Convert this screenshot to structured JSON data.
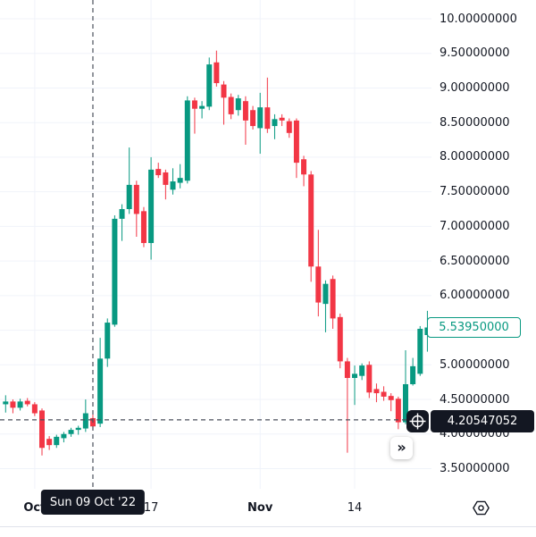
{
  "chart_data": {
    "type": "candlestick",
    "title": "",
    "colors": {
      "up": "#089981",
      "down": "#f23645",
      "grid": "#f0f3fa",
      "text": "#131722",
      "crosshair": "#4a4f5a",
      "axis_separator": "#e0e3eb",
      "background": "#ffffff"
    },
    "price_axis": {
      "max": 10.0,
      "min": 3.5,
      "tick_values": [
        10.0,
        9.5,
        9.0,
        8.5,
        8.0,
        7.5,
        7.0,
        6.5,
        6.0,
        5.5,
        5.0,
        4.5,
        4.0,
        3.5
      ],
      "tick_labels": [
        "10.00000000",
        "9.50000000",
        "9.00000000",
        "8.50000000",
        "8.00000000",
        "7.50000000",
        "7.00000000",
        "6.50000000",
        "6.00000000",
        "5.50000000",
        "5.00000000",
        "4.50000000",
        "4.00000000",
        "3.50000000"
      ]
    },
    "time_axis": {
      "ticks": [
        {
          "label": "Oct",
          "index": 4,
          "bold": true
        },
        {
          "label": "17",
          "index": 20,
          "bold": false
        },
        {
          "label": "Nov",
          "index": 35,
          "bold": true
        },
        {
          "label": "14",
          "index": 48,
          "bold": false
        }
      ]
    },
    "last_price": {
      "value": 5.5395,
      "label": "5.53950000"
    },
    "ohlc_order": [
      "open",
      "high",
      "low",
      "close"
    ],
    "candles": [
      [
        4.43,
        4.56,
        4.31,
        4.47
      ],
      [
        4.47,
        4.5,
        4.3,
        4.38
      ],
      [
        4.38,
        4.51,
        4.34,
        4.47
      ],
      [
        4.48,
        4.52,
        4.4,
        4.43
      ],
      [
        4.43,
        4.46,
        4.26,
        4.3
      ],
      [
        4.34,
        4.37,
        3.69,
        3.8
      ],
      [
        3.93,
        3.97,
        3.77,
        3.84
      ],
      [
        3.84,
        3.99,
        3.8,
        3.96
      ],
      [
        3.94,
        4.03,
        3.88,
        4.0
      ],
      [
        4.0,
        4.09,
        3.96,
        4.06
      ],
      [
        4.06,
        4.12,
        3.99,
        4.09
      ],
      [
        4.08,
        4.5,
        4.03,
        4.3
      ],
      [
        4.23,
        4.28,
        4.05,
        4.11
      ],
      [
        4.15,
        5.39,
        4.1,
        5.09
      ],
      [
        5.09,
        5.67,
        4.97,
        5.61
      ],
      [
        5.58,
        7.16,
        5.55,
        7.11
      ],
      [
        7.11,
        7.32,
        6.79,
        7.25
      ],
      [
        7.25,
        8.14,
        7.18,
        7.6
      ],
      [
        7.6,
        7.66,
        6.85,
        7.18
      ],
      [
        7.22,
        7.28,
        6.7,
        6.76
      ],
      [
        6.76,
        8.0,
        6.52,
        7.82
      ],
      [
        7.83,
        7.92,
        7.7,
        7.74
      ],
      [
        7.78,
        7.82,
        7.39,
        7.6
      ],
      [
        7.53,
        7.84,
        7.46,
        7.65
      ],
      [
        7.63,
        7.9,
        7.55,
        7.7
      ],
      [
        7.66,
        8.88,
        7.62,
        8.82
      ],
      [
        8.82,
        8.86,
        8.34,
        8.7
      ],
      [
        8.7,
        8.81,
        8.56,
        8.74
      ],
      [
        8.73,
        9.44,
        8.68,
        9.34
      ],
      [
        9.37,
        9.54,
        9.02,
        9.07
      ],
      [
        9.05,
        9.1,
        8.47,
        8.86
      ],
      [
        8.87,
        8.92,
        8.55,
        8.62
      ],
      [
        8.68,
        8.9,
        8.6,
        8.85
      ],
      [
        8.81,
        8.88,
        8.18,
        8.53
      ],
      [
        8.68,
        8.74,
        8.4,
        8.45
      ],
      [
        8.42,
        8.93,
        8.05,
        8.72
      ],
      [
        8.72,
        9.15,
        8.35,
        8.41
      ],
      [
        8.45,
        8.62,
        8.26,
        8.55
      ],
      [
        8.57,
        8.62,
        8.45,
        8.53
      ],
      [
        8.52,
        8.56,
        8.28,
        8.35
      ],
      [
        8.53,
        8.56,
        7.7,
        7.92
      ],
      [
        7.97,
        8.02,
        7.58,
        7.75
      ],
      [
        7.75,
        7.8,
        6.2,
        6.42
      ],
      [
        6.42,
        6.95,
        5.7,
        5.9
      ],
      [
        5.88,
        6.22,
        5.47,
        6.17
      ],
      [
        6.24,
        6.29,
        5.52,
        5.67
      ],
      [
        5.69,
        5.74,
        4.95,
        5.05
      ],
      [
        5.05,
        5.1,
        3.73,
        4.81
      ],
      [
        4.81,
        4.99,
        4.42,
        4.87
      ],
      [
        4.84,
        5.02,
        4.78,
        4.99
      ],
      [
        5.0,
        5.05,
        4.52,
        4.6
      ],
      [
        4.65,
        4.73,
        4.46,
        4.59
      ],
      [
        4.61,
        4.69,
        4.48,
        4.54
      ],
      [
        4.55,
        4.59,
        4.33,
        4.49
      ],
      [
        4.51,
        4.54,
        4.07,
        4.17
      ],
      [
        4.17,
        5.21,
        4.14,
        4.72
      ],
      [
        4.72,
        5.1,
        4.7,
        4.98
      ],
      [
        4.87,
        5.56,
        4.84,
        5.52
      ],
      [
        5.43,
        5.78,
        5.19,
        5.5395
      ]
    ],
    "crosshair": {
      "candle_index": 12,
      "price": 4.20547052,
      "price_label": "4.20547052",
      "date_label": "Sun 09 Oct '22"
    }
  },
  "controls": {
    "scroll_to_recent": "»"
  }
}
